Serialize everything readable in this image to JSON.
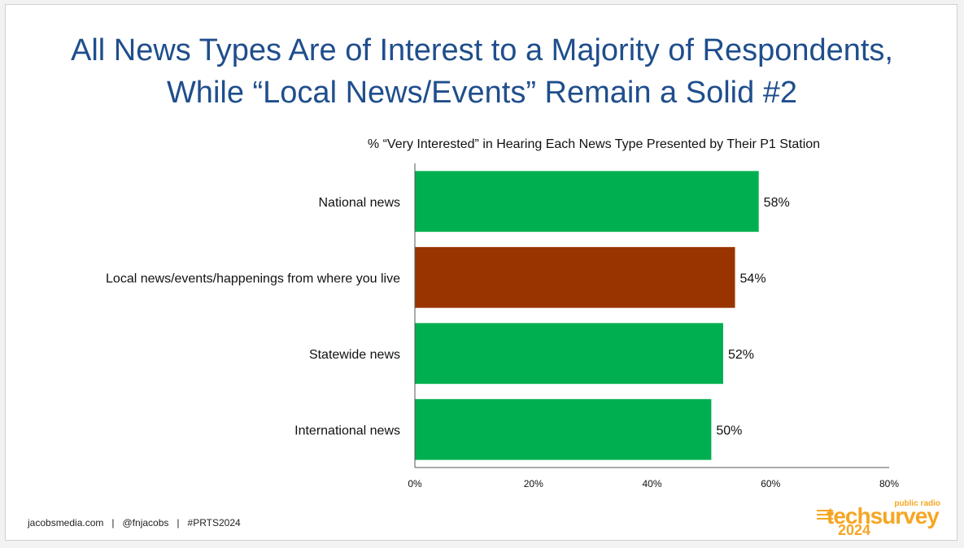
{
  "title": {
    "line1": "All News Types Are of Interest to a Majority of Respondents,",
    "line2": "While “Local News/Events” Remain a Solid #2"
  },
  "chart_data": {
    "type": "bar",
    "orientation": "horizontal",
    "subtitle": "% “Very Interested” in Hearing Each News Type Presented by Their P1 Station",
    "categories": [
      "National news",
      "Local news/events/happenings from where you live",
      "Statewide news",
      "International news"
    ],
    "values": [
      58,
      54,
      52,
      50
    ],
    "data_labels": [
      "58%",
      "54%",
      "52%",
      "50%"
    ],
    "colors": [
      "#00b050",
      "#993300",
      "#00b050",
      "#00b050"
    ],
    "xlim": [
      0,
      80
    ],
    "xticks": [
      0,
      20,
      40,
      60,
      80
    ],
    "xtick_labels": [
      "0%",
      "20%",
      "40%",
      "60%",
      "80%"
    ],
    "grid": false
  },
  "footer": {
    "site": "jacobsmedia.com",
    "handle": "@fnjacobs",
    "hashtag": "#PRTS2024",
    "separator": "|"
  },
  "logo": {
    "small": "public radio",
    "main": "techsurvey",
    "year": "2024"
  }
}
